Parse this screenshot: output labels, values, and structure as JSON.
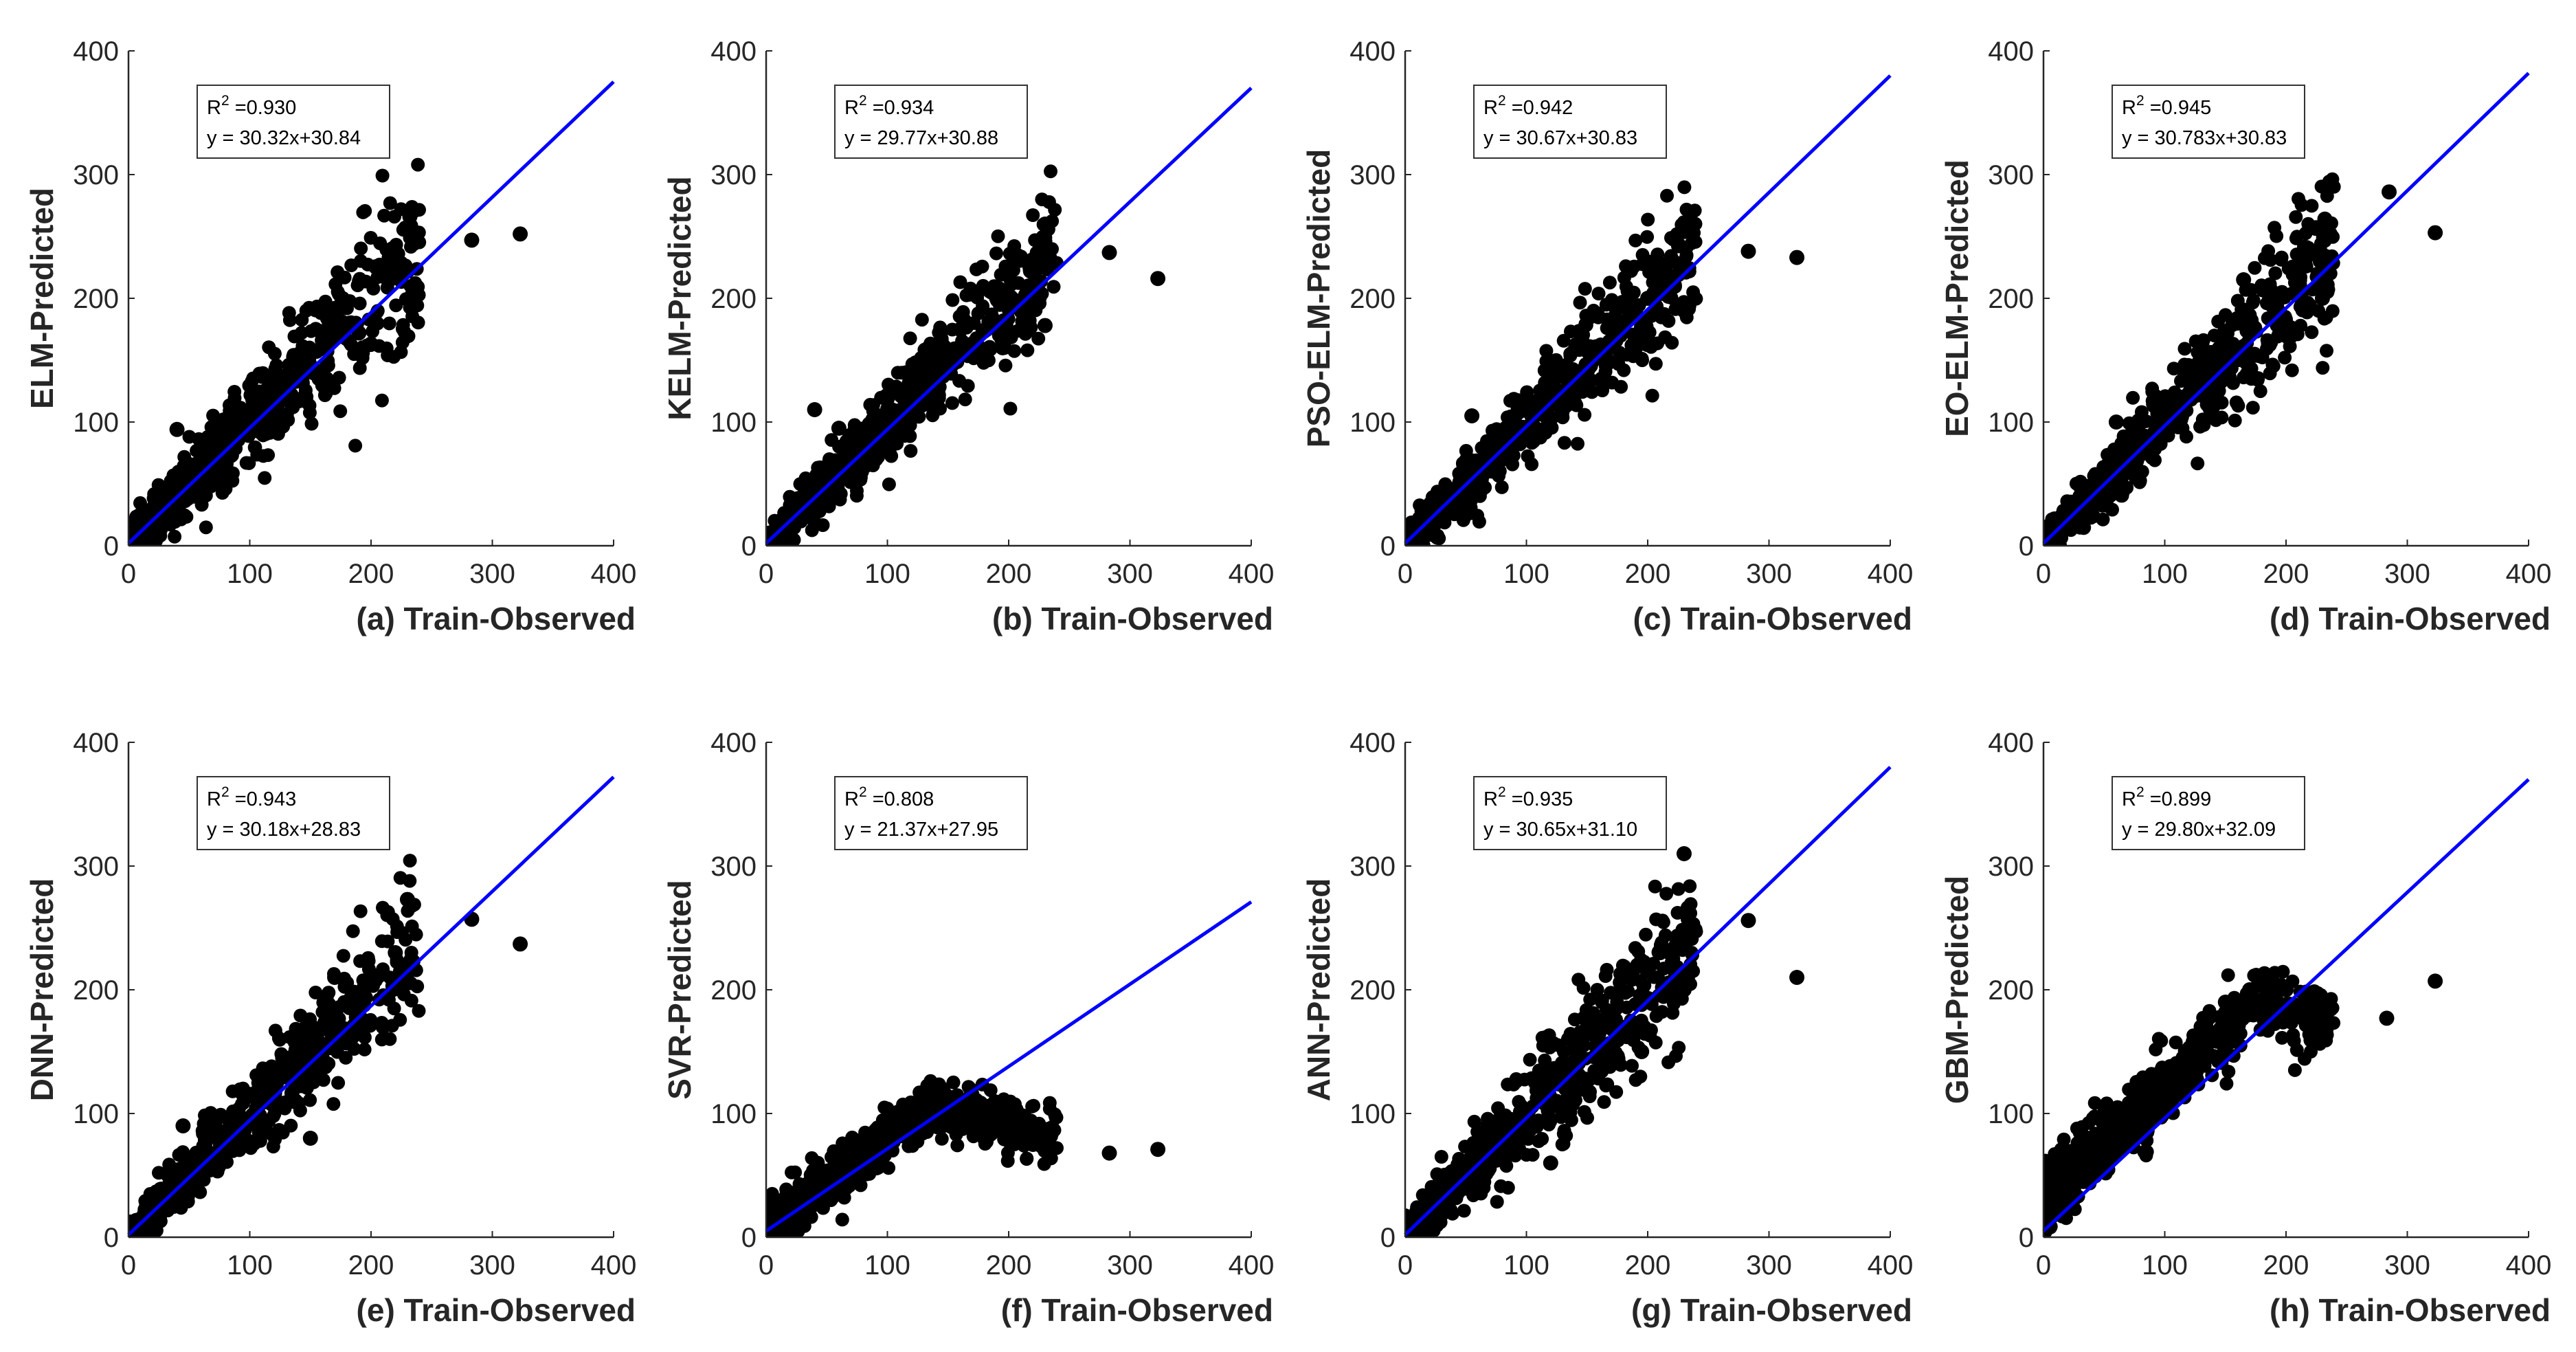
{
  "figure": {
    "axis_color": "#262626",
    "point_color": "#000000",
    "fit_line_color": "#0000ff"
  },
  "chart_data": [
    {
      "type": "scatter",
      "panel": "a",
      "xlabel": "(a) Train-Observed",
      "ylabel": "ELM-Predicted",
      "xlim": [
        0,
        400
      ],
      "ylim": [
        0,
        400
      ],
      "xticks": [
        "0",
        "100",
        "200",
        "300",
        "400"
      ],
      "yticks": [
        "0",
        "100",
        "200",
        "300",
        "400"
      ],
      "r2_label": "R",
      "r2_sup": "2",
      "r2_value": " =0.930",
      "fit_equation": "y = 30.32x+30.84",
      "fit_line": [
        [
          0,
          2
        ],
        [
          400,
          375
        ]
      ],
      "spread": 18,
      "outliers": [
        [
          232,
          266
        ],
        [
          283,
          247
        ],
        [
          323,
          252
        ],
        [
          225,
          228
        ],
        [
          215,
          233
        ],
        [
          230,
          222
        ],
        [
          200,
          163
        ],
        [
          190,
          172
        ],
        [
          40,
          94
        ],
        [
          160,
          165
        ]
      ]
    },
    {
      "type": "scatter",
      "panel": "b",
      "xlabel": "(b) Train-Observed",
      "ylabel": "KELM-Predicted",
      "xlim": [
        0,
        400
      ],
      "ylim": [
        0,
        400
      ],
      "xticks": [
        "0",
        "100",
        "200",
        "300",
        "400"
      ],
      "yticks": [
        "0",
        "100",
        "200",
        "300",
        "400"
      ],
      "r2_label": "R",
      "r2_sup": "2",
      "r2_value": " =0.934",
      "fit_equation": "y = 29.77x+30.88",
      "fit_line": [
        [
          0,
          2
        ],
        [
          400,
          370
        ]
      ],
      "spread": 16,
      "outliers": [
        [
          230,
          260
        ],
        [
          283,
          237
        ],
        [
          323,
          216
        ],
        [
          218,
          222
        ],
        [
          210,
          198
        ],
        [
          230,
          178
        ],
        [
          195,
          160
        ],
        [
          40,
          110
        ],
        [
          60,
          95
        ]
      ]
    },
    {
      "type": "scatter",
      "panel": "c",
      "xlabel": "(c) Train-Observed",
      "ylabel": "PSO-ELM-Predicted",
      "xlim": [
        0,
        400
      ],
      "ylim": [
        0,
        400
      ],
      "xticks": [
        "0",
        "100",
        "200",
        "300",
        "400"
      ],
      "yticks": [
        "0",
        "100",
        "200",
        "300",
        "400"
      ],
      "r2_label": "R",
      "r2_sup": "2",
      "r2_value": " =0.942",
      "fit_equation": "y = 30.67x+30.83",
      "fit_line": [
        [
          0,
          2
        ],
        [
          400,
          380
        ]
      ],
      "spread": 16,
      "outliers": [
        [
          230,
          254
        ],
        [
          283,
          238
        ],
        [
          323,
          233
        ],
        [
          225,
          228
        ],
        [
          200,
          200
        ],
        [
          190,
          160
        ],
        [
          230,
          190
        ],
        [
          55,
          105
        ]
      ]
    },
    {
      "type": "scatter",
      "panel": "d",
      "xlabel": "(d) Train-Observed",
      "ylabel": "EO-ELM-Predicted",
      "xlim": [
        0,
        400
      ],
      "ylim": [
        0,
        400
      ],
      "xticks": [
        "0",
        "100",
        "200",
        "300",
        "400"
      ],
      "yticks": [
        "0",
        "100",
        "200",
        "300",
        "400"
      ],
      "r2_label": "R",
      "r2_sup": "2",
      "r2_value": " =0.945",
      "fit_equation": "y = 30.783x+30.83",
      "fit_line": [
        [
          0,
          2
        ],
        [
          400,
          382
        ]
      ],
      "spread": 16,
      "outliers": [
        [
          285,
          286
        ],
        [
          323,
          253
        ],
        [
          232,
          264
        ],
        [
          220,
          238
        ],
        [
          165,
          215
        ],
        [
          200,
          172
        ],
        [
          230,
          200
        ],
        [
          60,
          100
        ]
      ]
    },
    {
      "type": "scatter",
      "panel": "e",
      "xlabel": "(e) Train-Observed",
      "ylabel": "DNN-Predicted",
      "xlim": [
        0,
        400
      ],
      "ylim": [
        0,
        400
      ],
      "xticks": [
        "0",
        "100",
        "200",
        "300",
        "400"
      ],
      "yticks": [
        "0",
        "100",
        "200",
        "300",
        "400"
      ],
      "r2_label": "R",
      "r2_sup": "2",
      "r2_value": " =0.943",
      "fit_equation": "y = 30.18x+28.83",
      "fit_line": [
        [
          0,
          2
        ],
        [
          400,
          372
        ]
      ],
      "spread": 16,
      "outliers": [
        [
          230,
          273
        ],
        [
          283,
          257
        ],
        [
          323,
          237
        ],
        [
          220,
          230
        ],
        [
          170,
          210
        ],
        [
          210,
          170
        ],
        [
          150,
          80
        ],
        [
          45,
          90
        ]
      ]
    },
    {
      "type": "scatter",
      "panel": "f",
      "xlabel": "(f) Train-Observed",
      "ylabel": "SVR-Predicted",
      "xlim": [
        0,
        400
      ],
      "ylim": [
        0,
        400
      ],
      "xticks": [
        "0",
        "100",
        "200",
        "300",
        "400"
      ],
      "yticks": [
        "0",
        "100",
        "200",
        "300",
        "400"
      ],
      "r2_label": "R",
      "r2_sup": "2",
      "r2_value": " =0.808",
      "fit_equation": "y = 21.37x+27.95",
      "fit_line": [
        [
          0,
          5
        ],
        [
          400,
          271
        ]
      ],
      "spread": 12,
      "outliers": [
        [
          283,
          68
        ],
        [
          323,
          71
        ],
        [
          230,
          70
        ],
        [
          220,
          75
        ],
        [
          200,
          78
        ],
        [
          180,
          80
        ],
        [
          210,
          90
        ],
        [
          160,
          100
        ],
        [
          140,
          108
        ],
        [
          120,
          105
        ]
      ]
    },
    {
      "type": "scatter",
      "panel": "g",
      "xlabel": "(g) Train-Observed",
      "ylabel": "ANN-Predicted",
      "xlim": [
        0,
        400
      ],
      "ylim": [
        0,
        400
      ],
      "xticks": [
        "0",
        "100",
        "200",
        "300",
        "400"
      ],
      "yticks": [
        "0",
        "100",
        "200",
        "300",
        "400"
      ],
      "r2_label": "R",
      "r2_sup": "2",
      "r2_value": " =0.935",
      "fit_equation": "y = 30.65x+31.10",
      "fit_line": [
        [
          0,
          2
        ],
        [
          400,
          380
        ]
      ],
      "spread": 17,
      "outliers": [
        [
          230,
          310
        ],
        [
          283,
          256
        ],
        [
          323,
          210
        ],
        [
          218,
          230
        ],
        [
          200,
          215
        ],
        [
          195,
          150
        ],
        [
          230,
          200
        ],
        [
          120,
          60
        ]
      ]
    },
    {
      "type": "scatter",
      "panel": "h",
      "xlabel": "(h) Train-Observed",
      "ylabel": "GBM-Predicted",
      "xlim": [
        0,
        400
      ],
      "ylim": [
        0,
        400
      ],
      "xticks": [
        "0",
        "100",
        "200",
        "300",
        "400"
      ],
      "yticks": [
        "0",
        "100",
        "200",
        "300",
        "400"
      ],
      "r2_label": "R",
      "r2_sup": "2",
      "r2_value": " =0.899",
      "fit_equation": "y = 29.80x+32.09",
      "fit_line": [
        [
          0,
          5
        ],
        [
          400,
          370
        ]
      ],
      "spread": 14,
      "outliers": [
        [
          323,
          207
        ],
        [
          283,
          177
        ],
        [
          230,
          190
        ],
        [
          225,
          165
        ],
        [
          200,
          200
        ],
        [
          185,
          210
        ],
        [
          170,
          200
        ],
        [
          150,
          190
        ],
        [
          130,
          170
        ],
        [
          5,
          60
        ],
        [
          10,
          55
        ]
      ]
    }
  ]
}
